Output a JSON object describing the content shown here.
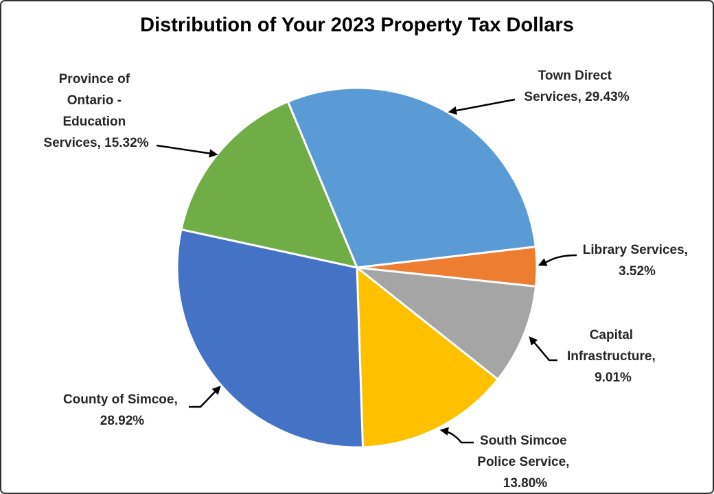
{
  "chart_data": {
    "type": "pie",
    "title": "Distribution of Your 2023 Property Tax Dollars",
    "values": [
      29.43,
      3.52,
      9.01,
      13.8,
      28.92,
      15.32
    ],
    "value_labels": [
      "Town Direct Services, 29.43%",
      "Library Services, 3.52%",
      "Capital Infrastructure, 9.01%",
      "South Simcoe Police Service, 13.80%",
      "County of Simcoe, 28.92%",
      "Province of Ontario - Education Services, 15.32%"
    ],
    "colors": [
      "#5b9bd5",
      "#ed7d31",
      "#a5a5a5",
      "#ffc000",
      "#4472c4",
      "#70ad47"
    ]
  }
}
